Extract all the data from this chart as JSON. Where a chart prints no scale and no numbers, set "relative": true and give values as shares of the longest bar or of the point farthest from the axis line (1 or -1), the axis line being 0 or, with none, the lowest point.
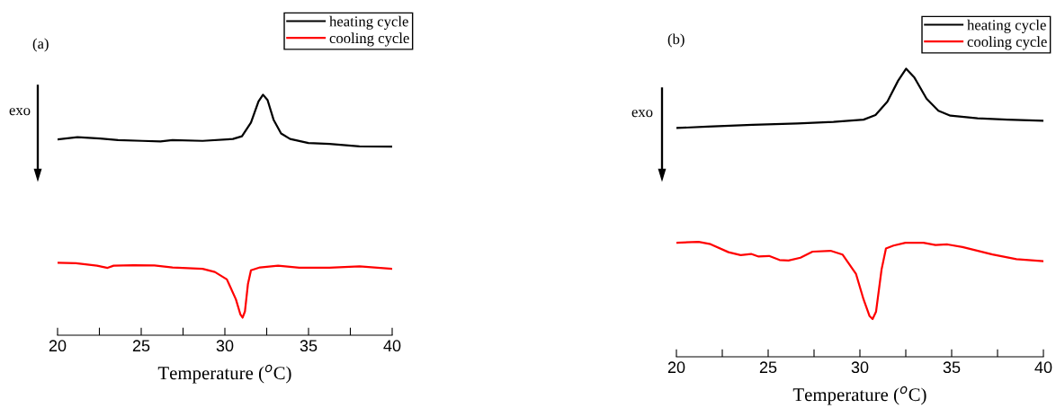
{
  "chart_data": [
    {
      "type": "line",
      "title": "(a)",
      "xlabel": "Temperature ($^{o}$C)",
      "relative": true,
      "annotations": [
        "exo"
      ],
      "legend": "top right",
      "grid": false,
      "xlim": [
        20,
        40
      ],
      "xticks": [
        20,
        {
          "value": 22.5,
          "label": null
        },
        25,
        {
          "value": 27.5,
          "label": null
        },
        30,
        {
          "value": 32.5,
          "label": null
        },
        35,
        {
          "value": 37.5,
          "label": null
        },
        40
      ],
      "series": [
        {
          "name": "heating cycle",
          "color": "#000000",
          "x": [
            20.0,
            21.19,
            22.54,
            23.62,
            25.07,
            26.15,
            26.87,
            28.67,
            30.48,
            31.02,
            31.56,
            32.01,
            32.28,
            32.55,
            32.91,
            33.36,
            33.9,
            34.99,
            36.25,
            38.05,
            39.95
          ],
          "values": [
            0.814,
            0.823,
            0.818,
            0.811,
            0.808,
            0.806,
            0.811,
            0.808,
            0.816,
            0.827,
            0.884,
            0.972,
            1.0,
            0.978,
            0.896,
            0.839,
            0.816,
            0.799,
            0.795,
            0.785,
            0.784
          ]
        },
        {
          "name": "cooling cycle",
          "color": "#ff0000",
          "x": [
            20.0,
            21.1,
            22.36,
            22.99,
            23.35,
            24.53,
            25.79,
            26.87,
            28.67,
            29.4,
            30.12,
            30.66,
            30.93,
            31.06,
            31.2,
            31.38,
            31.56,
            32.1,
            33.18,
            34.45,
            36.25,
            38.05,
            39.95
          ],
          "values": [
            0.301,
            0.299,
            0.289,
            0.28,
            0.289,
            0.291,
            0.29,
            0.282,
            0.276,
            0.263,
            0.232,
            0.149,
            0.086,
            0.073,
            0.099,
            0.213,
            0.27,
            0.282,
            0.289,
            0.281,
            0.281,
            0.286,
            0.276
          ]
        }
      ]
    },
    {
      "type": "line",
      "title": "(b)",
      "xlabel": "Temperature ($^{o}$C)",
      "relative": true,
      "annotations": [
        "exo"
      ],
      "legend": "top right",
      "grid": false,
      "xlim": [
        20,
        40
      ],
      "xticks": [
        20,
        {
          "value": 22.5,
          "label": null
        },
        25,
        {
          "value": 27.5,
          "label": null
        },
        30,
        {
          "value": 32.5,
          "label": null
        },
        35,
        {
          "value": 37.5,
          "label": null
        },
        40
      ],
      "series": [
        {
          "name": "heating cycle",
          "color": "#000000",
          "x": [
            20.0,
            21.7,
            24.15,
            26.6,
            28.56,
            30.2,
            30.85,
            31.5,
            32.08,
            32.52,
            32.97,
            33.63,
            34.28,
            34.93,
            36.41,
            38.04,
            39.97
          ],
          "values": [
            0.794,
            0.799,
            0.805,
            0.81,
            0.815,
            0.823,
            0.839,
            0.886,
            0.958,
            1.0,
            0.969,
            0.896,
            0.854,
            0.837,
            0.828,
            0.823,
            0.819
          ]
        },
        {
          "name": "cooling cycle",
          "color": "#ff0000",
          "x": [
            20.0,
            21.21,
            21.86,
            22.84,
            23.5,
            24.07,
            24.48,
            25.05,
            25.62,
            26.11,
            26.76,
            27.42,
            28.4,
            29.05,
            29.79,
            30.2,
            30.52,
            30.69,
            30.88,
            31.18,
            31.42,
            31.83,
            32.48,
            33.46,
            34.12,
            34.77,
            35.59,
            37.22,
            38.53,
            39.97
          ],
          "values": [
            0.396,
            0.399,
            0.391,
            0.363,
            0.353,
            0.357,
            0.348,
            0.35,
            0.336,
            0.334,
            0.344,
            0.365,
            0.368,
            0.355,
            0.287,
            0.199,
            0.142,
            0.131,
            0.157,
            0.303,
            0.376,
            0.386,
            0.396,
            0.396,
            0.388,
            0.39,
            0.381,
            0.355,
            0.339,
            0.332
          ]
        }
      ]
    }
  ]
}
